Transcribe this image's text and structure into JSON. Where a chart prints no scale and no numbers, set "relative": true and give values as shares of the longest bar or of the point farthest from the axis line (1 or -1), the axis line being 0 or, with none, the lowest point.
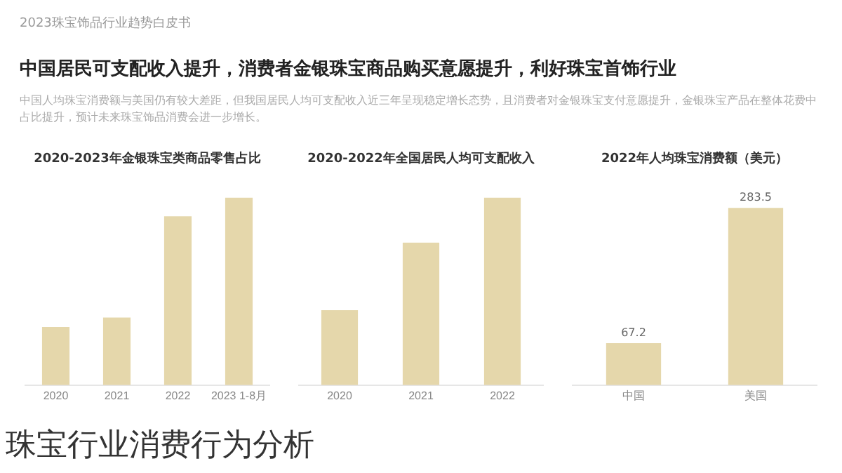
{
  "chart_data": [
    {
      "type": "other",
      "title": "中国居民可支配收入提升，消费者金银珠宝商品购买意愿提升，利好珠宝首饰行业",
      "subtitle": "中国人均珠宝消费额与美国仍有较大差距，但我国居民人均可支配收入近三年呈现稳定增长态势，且消费者对金银珠宝支付意愿提升，金银珠宝产品在整体花费中占比提升，预计未来珠宝饰品消费会进一步增长。",
      "annotations": [
        "2023珠宝饰品行业趋势白皮书",
        "珠宝行业消费行为分析"
      ]
    },
    {
      "type": "bar",
      "title": "2020-2023年金银珠宝类商品零售占比",
      "categories": [
        "2020",
        "2021",
        "2022",
        "2023 1-8月"
      ],
      "values": [
        0.31,
        0.36,
        0.9,
        1
      ],
      "color": "#e5d7ab",
      "relative": true,
      "grid": false,
      "legend": false
    },
    {
      "type": "bar",
      "title": "2020-2022年全国居民人均可支配收入",
      "categories": [
        "2020",
        "2021",
        "2022"
      ],
      "values": [
        0.4,
        0.76,
        1
      ],
      "color": "#e5d7ab",
      "relative": true,
      "grid": false,
      "legend": false
    },
    {
      "type": "bar",
      "title": "2022年人均珠宝消费额（美元）",
      "categories": [
        "中国",
        "美国"
      ],
      "values": [
        67.2,
        283.5
      ],
      "color": "#e5d7ab",
      "tick_labels": "x",
      "data_labels": true,
      "grid": false,
      "legend": false
    }
  ]
}
